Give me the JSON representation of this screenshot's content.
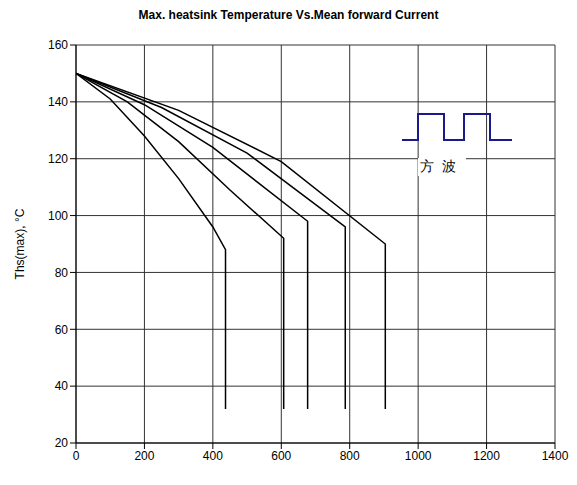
{
  "chart_data": {
    "type": "line",
    "title": "Max. heatsink Temperature Vs.Mean forward Current",
    "ylabel": "Ths(max), °C",
    "annotation": "方波",
    "xlim": [
      0,
      1400
    ],
    "xticks": [
      0,
      200,
      400,
      600,
      800,
      1000,
      1200,
      1400
    ],
    "ylim": [
      20,
      160
    ],
    "yticks": [
      20,
      40,
      60,
      80,
      100,
      120,
      140,
      160
    ],
    "grid": true,
    "series": [
      {
        "color": "#000000",
        "x": [
          0,
          100,
          200,
          300,
          400,
          437,
          437
        ],
        "values": [
          150,
          141,
          128,
          113,
          96,
          88,
          32
        ]
      },
      {
        "color": "#000000",
        "x": [
          0,
          150,
          300,
          450,
          607,
          607
        ],
        "values": [
          150,
          140,
          126,
          109,
          92,
          32
        ]
      },
      {
        "color": "#000000",
        "x": [
          0,
          200,
          400,
          677,
          677
        ],
        "values": [
          150,
          139,
          124,
          98,
          32
        ]
      },
      {
        "color": "#000000",
        "x": [
          0,
          250,
          500,
          787,
          787
        ],
        "values": [
          150,
          138,
          122,
          96,
          32
        ]
      },
      {
        "color": "#000000",
        "x": [
          0,
          300,
          600,
          904,
          904
        ],
        "values": [
          150,
          137,
          119,
          90,
          32
        ]
      }
    ]
  }
}
